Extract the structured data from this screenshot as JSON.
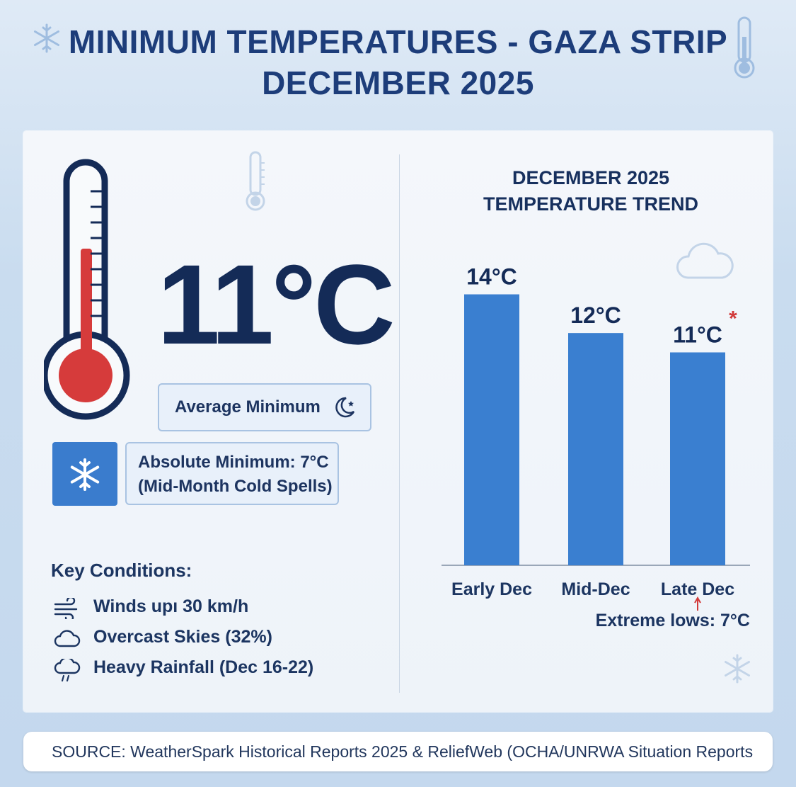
{
  "title": {
    "line1": "MINIMUM TEMPERATURES - GAZA STRIP",
    "line2": "DECEMBER 2025"
  },
  "summary": {
    "average_value": "11°C",
    "average_label": "Average Minimum",
    "absolute_line1": "Absolute Minimum: 7°C",
    "absolute_line2": "(Mid-Month Cold Spells)"
  },
  "key_conditions": {
    "title": "Key Conditions:",
    "items": [
      {
        "icon": "wind-icon",
        "text": "Winds upı 30 km/h"
      },
      {
        "icon": "cloud-icon",
        "text": "Overcast Skies (32%)"
      },
      {
        "icon": "rain-cloud-icon",
        "text": "Heavy Rainfall (Dec 16-22)"
      }
    ]
  },
  "chart_data": {
    "type": "bar",
    "title_line1": "DECEMBER 2025",
    "title_line2": "TEMPERATURE TREND",
    "categories": [
      "Early Dec",
      "Mid-Dec",
      "Late Dec"
    ],
    "values": [
      14,
      12,
      11
    ],
    "value_labels": [
      "14°C",
      "12°C",
      "11°C"
    ],
    "ylim": [
      0,
      15.3
    ],
    "grid": false,
    "annotation": "Extreme lows: 7°C",
    "annotation_marker": "*",
    "colors": {
      "bar": "#3a7fd0",
      "axis": "#9aa7b8",
      "marker": "#d23a3a"
    }
  },
  "colors": {
    "thermo_red": "#d63b3b",
    "dark_navy": "#142b57",
    "accent_blue": "#3a7ccd"
  },
  "source": "SOURCE: WeatherSpark Historical Reports 2025 & ReliefWeb (OCHA/UNRWA Situation Reports"
}
